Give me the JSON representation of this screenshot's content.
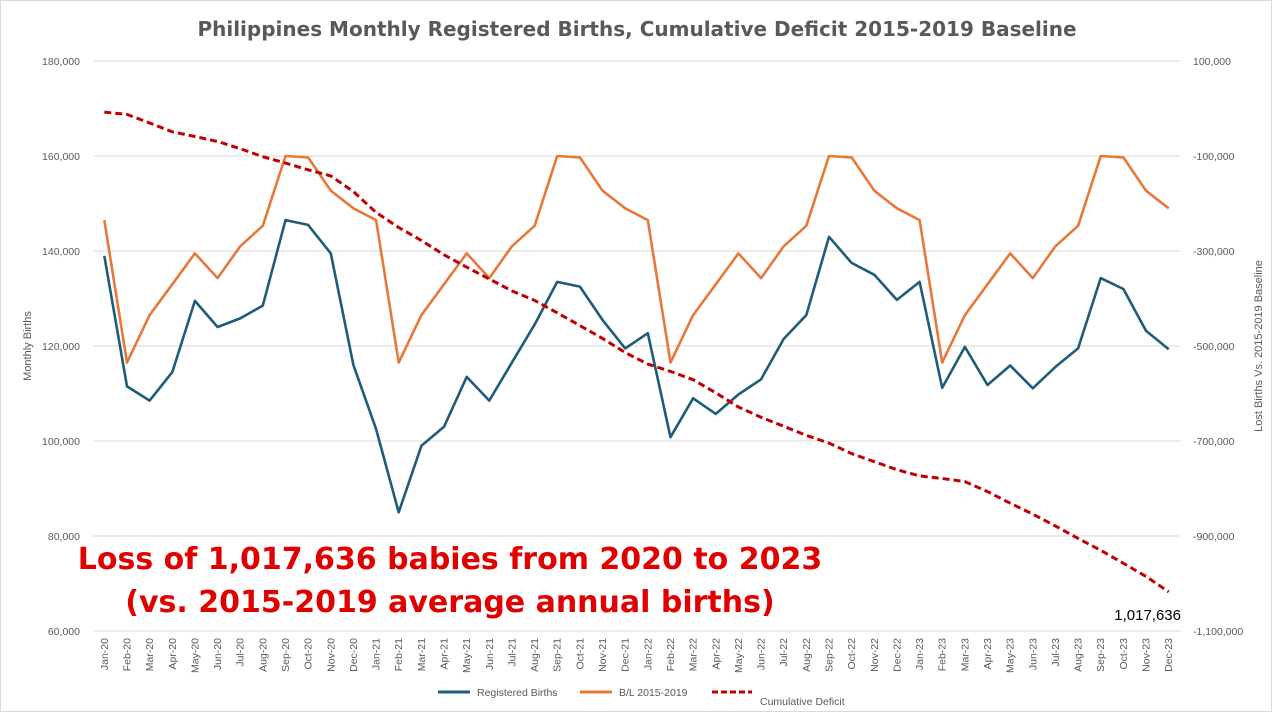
{
  "chart_data": {
    "type": "line",
    "title": "Philippines Monthly Registered Births, Cumulative Deficit 2015-2019 Baseline",
    "ylabel": "Monthly Births",
    "y2label": "Lost Births Vs. 2015-2019 Baseline",
    "ylim": [
      60000,
      180000
    ],
    "y2lim": [
      -1100000,
      100000
    ],
    "yticks": [
      "60,000",
      "80,000",
      "100,000",
      "120,000",
      "140,000",
      "160,000",
      "180,000"
    ],
    "y2ticks": [
      "-1,100,000",
      "-900,000",
      "-700,000",
      "-500,000",
      "-300,000",
      "-100,000",
      "100,000"
    ],
    "grid": true,
    "legend_position": "bottom",
    "categories": [
      "Jan-20",
      "Feb-20",
      "Mar-20",
      "Apr-20",
      "May-20",
      "Jun-20",
      "Jul-20",
      "Aug-20",
      "Sep-20",
      "Oct-20",
      "Nov-20",
      "Dec-20",
      "Jan-21",
      "Feb-21",
      "Mar-21",
      "Apr-21",
      "May-21",
      "Jun-21",
      "Jul-21",
      "Aug-21",
      "Sep-21",
      "Oct-21",
      "Nov-21",
      "Dec-21",
      "Jan-22",
      "Feb-22",
      "Mar-22",
      "Apr-22",
      "May-22",
      "Jun-22",
      "Jul-22",
      "Aug-22",
      "Sep-22",
      "Oct-22",
      "Nov-22",
      "Dec-22",
      "Jan-23",
      "Feb-23",
      "Mar-23",
      "Apr-23",
      "May-23",
      "Jun-23",
      "Jul-23",
      "Aug-23",
      "Sep-23",
      "Oct-23",
      "Nov-23",
      "Dec-23"
    ],
    "series": [
      {
        "name": "Registered Births",
        "axis": "left",
        "color": "#1f5c7a",
        "values": [
          139000,
          111500,
          108500,
          114500,
          129500,
          124000,
          125800,
          128500,
          146500,
          145500,
          139500,
          116000,
          102500,
          85000,
          99000,
          103000,
          113500,
          108500,
          116500,
          124500,
          133500,
          132500,
          125500,
          119500,
          122700,
          100800,
          109000,
          105700,
          109800,
          113000,
          121500,
          126500,
          143000,
          137500,
          135000,
          129700,
          133500,
          111200,
          119800,
          111800,
          115900,
          111100,
          115600,
          119500,
          134300,
          132000,
          123200,
          119300
        ]
      },
      {
        "name": "B/L 2015-2019",
        "axis": "left",
        "color": "#e8783a",
        "values": [
          146500,
          116500,
          126500,
          133000,
          139500,
          134300,
          141000,
          145300,
          160000,
          159700,
          152700,
          149000,
          146500,
          116500,
          126500,
          133000,
          139500,
          134300,
          141000,
          145300,
          160000,
          159700,
          152700,
          149000,
          146500,
          116500,
          126500,
          133000,
          139500,
          134300,
          141000,
          145300,
          160000,
          159700,
          152700,
          149000,
          146500,
          116500,
          126500,
          133000,
          139500,
          134300,
          141000,
          145300,
          160000,
          159700,
          152700,
          149000
        ]
      },
      {
        "name": "Cumulative Deficit",
        "axis": "right",
        "color": "#c00000",
        "dashed": true,
        "values": [
          -7500,
          -12500,
          -30500,
          -49000,
          -59000,
          -69500,
          -84500,
          -101500,
          -115000,
          -129000,
          -142000,
          -175000,
          -219000,
          -250500,
          -278000,
          -308000,
          -334000,
          -359000,
          -384000,
          -404000,
          -430000,
          -457000,
          -484000,
          -514000,
          -538000,
          -553500,
          -571000,
          -598500,
          -628500,
          -650000,
          -669000,
          -688000,
          -704500,
          -726500,
          -743500,
          -760500,
          -773500,
          -779000,
          -785500,
          -806500,
          -831000,
          -854000,
          -879000,
          -905000,
          -930000,
          -957500,
          -985000,
          -1017636
        ]
      }
    ],
    "annotations": {
      "callout_line1": "Loss of 1,017,636 babies from 2020 to 2023",
      "callout_line2": "(vs. 2015-2019 average annual births)",
      "end_label": "1,017,636"
    }
  }
}
